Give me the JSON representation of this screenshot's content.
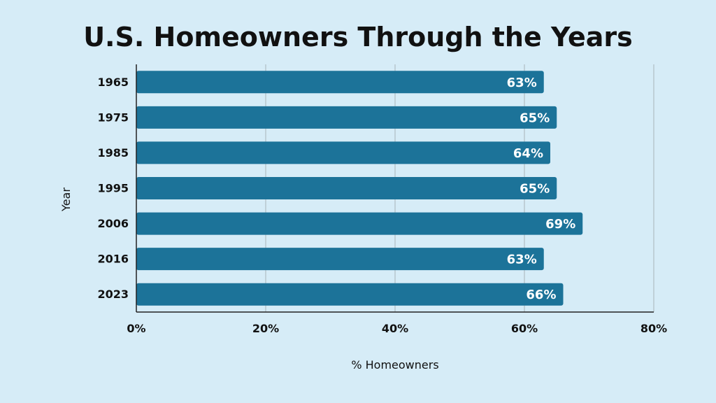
{
  "chart_data": {
    "type": "bar",
    "orientation": "horizontal",
    "title": "U.S. Homeowners Through the Years",
    "xlabel": "% Homeowners",
    "ylabel": "Year",
    "categories": [
      "1965",
      "1975",
      "1985",
      "1995",
      "2006",
      "2016",
      "2023"
    ],
    "values": [
      63,
      65,
      64,
      65,
      69,
      63,
      66
    ],
    "data_labels": [
      "63%",
      "65%",
      "64%",
      "65%",
      "69%",
      "63%",
      "66%"
    ],
    "xlim": [
      0,
      80
    ],
    "x_ticks": [
      0,
      20,
      40,
      60,
      80
    ],
    "x_tick_labels": [
      "0%",
      "20%",
      "40%",
      "60%",
      "80%"
    ],
    "grid": true,
    "legend": "none",
    "colors": {
      "background": "#d6ecf7",
      "bar": "#1c7399",
      "gridline": "#a8b3ba",
      "axis": "#222222",
      "text": "#111111",
      "data_label": "#ffffff"
    }
  }
}
